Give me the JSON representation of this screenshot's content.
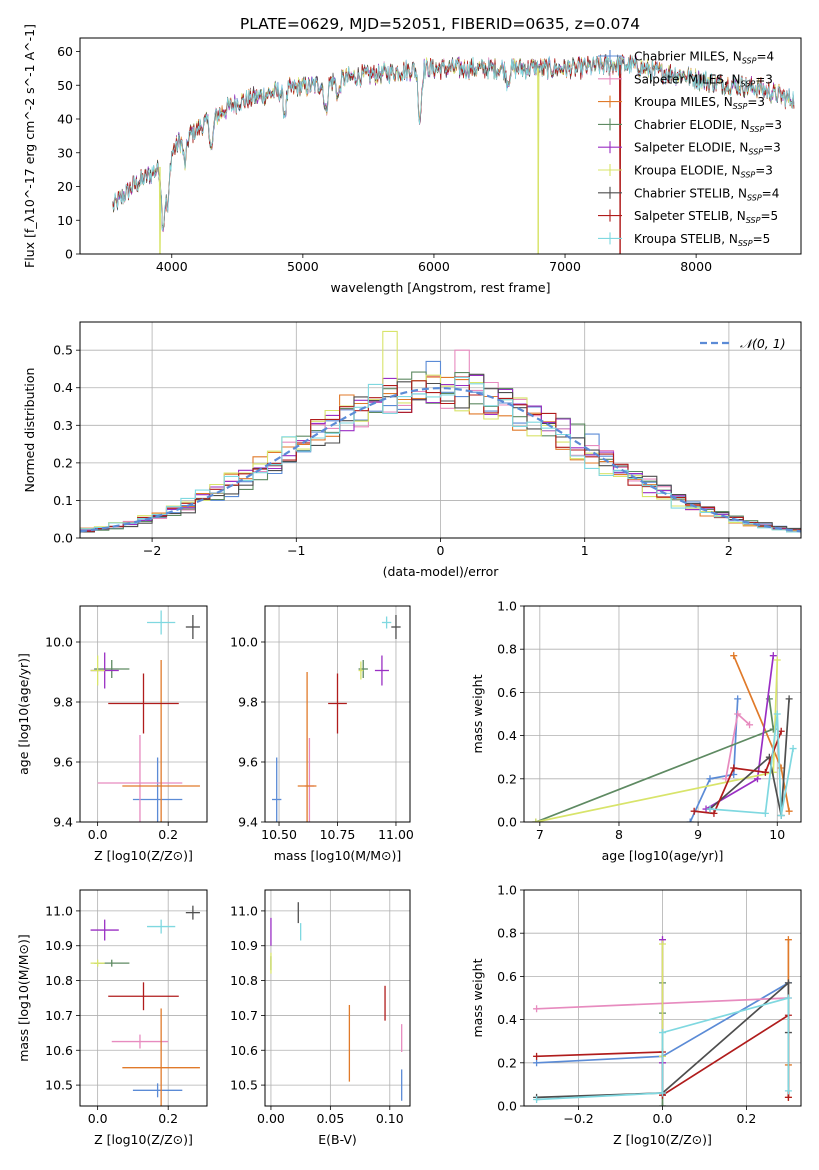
{
  "figure_title": "PLATE=0629, MJD=52051, FIBERID=0635, z=0.074",
  "colors": {
    "Chabrier MILES": "#5b8bd6",
    "Salpeter MILES": "#e78bbf",
    "Kroupa MILES": "#e07a2a",
    "Chabrier ELODIE": "#5e8a62",
    "Salpeter ELODIE": "#9a2fc4",
    "Kroupa ELODIE": "#d8e46a",
    "Chabrier STELIB": "#4e4e4e",
    "Salpeter STELIB": "#b01c1c",
    "Kroupa STELIB": "#7fd8e0",
    "gauss": "#5b8bd6"
  },
  "chart_data": [
    {
      "id": "spectrum",
      "type": "line",
      "title": "PLATE=0629, MJD=52051, FIBERID=0635, z=0.074",
      "xlabel": "wavelength [Angstrom, rest frame]",
      "ylabel": "Flux [f_λ10^-17 erg cm^-2 s^-1 A^-1]",
      "xlim": [
        3300,
        8800
      ],
      "ylim": [
        0,
        64
      ],
      "xticks": [
        4000,
        5000,
        6000,
        7000,
        8000
      ],
      "yticks": [
        0,
        10,
        20,
        30,
        40,
        50,
        60
      ],
      "legend_position": "upper right",
      "legend": [
        {
          "name": "Chabrier MILES",
          "sub": "N_SSP=4"
        },
        {
          "name": "Salpeter MILES",
          "sub": "N_SSP=3"
        },
        {
          "name": "Kroupa MILES",
          "sub": "N_SSP=3"
        },
        {
          "name": "Chabrier ELODIE",
          "sub": "N_SSP=3"
        },
        {
          "name": "Salpeter ELODIE",
          "sub": "N_SSP=3"
        },
        {
          "name": "Kroupa ELODIE",
          "sub": "N_SSP=3"
        },
        {
          "name": "Chabrier STELIB",
          "sub": "N_SSP=4"
        },
        {
          "name": "Salpeter STELIB",
          "sub": "N_SSP=5"
        },
        {
          "name": "Kroupa STELIB",
          "sub": "N_SSP=5"
        }
      ],
      "continuum": [
        [
          3550,
          14
        ],
        [
          3700,
          20
        ],
        [
          3850,
          24
        ],
        [
          3950,
          27
        ],
        [
          4050,
          33
        ],
        [
          4200,
          37
        ],
        [
          4300,
          40
        ],
        [
          4500,
          45
        ],
        [
          4700,
          47
        ],
        [
          4900,
          49
        ],
        [
          5100,
          50
        ],
        [
          5300,
          52
        ],
        [
          5500,
          53
        ],
        [
          5700,
          54
        ],
        [
          5900,
          55
        ],
        [
          6100,
          55
        ],
        [
          6300,
          55
        ],
        [
          6500,
          55
        ],
        [
          6700,
          55
        ],
        [
          6900,
          55
        ],
        [
          7100,
          55
        ],
        [
          7300,
          56
        ],
        [
          7500,
          56
        ],
        [
          7700,
          54
        ],
        [
          7900,
          53
        ],
        [
          8100,
          51
        ],
        [
          8300,
          50
        ],
        [
          8500,
          49
        ],
        [
          8700,
          46
        ]
      ],
      "absorption": [
        [
          3934,
          18
        ],
        [
          3969,
          15
        ],
        [
          4101,
          8
        ],
        [
          4304,
          9
        ],
        [
          4861,
          7
        ],
        [
          5175,
          9
        ],
        [
          5270,
          5
        ],
        [
          5892,
          15
        ],
        [
          6563,
          4
        ]
      ],
      "dropouts": [
        {
          "series": "Kroupa ELODIE",
          "x": 3910
        },
        {
          "series": "Kroupa ELODIE",
          "x": 6795
        },
        {
          "series": "Salpeter STELIB",
          "x": 7420
        }
      ]
    },
    {
      "id": "residual_histogram",
      "type": "bar",
      "xlabel": "(data-model)/error",
      "ylabel": "Normed distribution",
      "xlim": [
        -2.5,
        2.5
      ],
      "ylim": [
        0,
        0.575
      ],
      "xticks": [
        -2,
        -1,
        0,
        1,
        2
      ],
      "yticks": [
        0,
        0.1,
        0.2,
        0.3,
        0.4,
        0.5
      ],
      "legend": [
        {
          "name": "N(0,1)",
          "style": "dashed"
        }
      ],
      "legend_position": "upper right",
      "bin_width": 0.1,
      "peak_values": {
        "Kroupa ELODIE": 0.55,
        "Chabrier MILES": 0.47,
        "Salpeter MILES": 0.5
      }
    },
    {
      "id": "age_vs_Z",
      "type": "scatter",
      "xlabel": "Z [log10(Z/Z⊙)]",
      "ylabel": "age [log10(age/yr)]",
      "xlim": [
        -0.05,
        0.31
      ],
      "ylim": [
        9.4,
        10.12
      ],
      "xticks": [
        0.0,
        0.2
      ],
      "yticks": [
        9.4,
        9.6,
        9.8,
        10.0
      ],
      "points": [
        {
          "series": "Chabrier MILES",
          "x": 0.17,
          "y": 9.475,
          "xerr": 0.07,
          "yerr": 0.14
        },
        {
          "series": "Salpeter MILES",
          "x": 0.12,
          "y": 9.53,
          "xerr": 0.12,
          "yerr": 0.16
        },
        {
          "series": "Kroupa MILES",
          "x": 0.18,
          "y": 9.52,
          "xerr": 0.11,
          "yerr": 0.42
        },
        {
          "series": "Chabrier ELODIE",
          "x": 0.04,
          "y": 9.91,
          "xerr": 0.05,
          "yerr": 0.03
        },
        {
          "series": "Salpeter ELODIE",
          "x": 0.02,
          "y": 9.905,
          "xerr": 0.04,
          "yerr": 0.06
        },
        {
          "series": "Kroupa ELODIE",
          "x": 0.0,
          "y": 9.905,
          "xerr": 0.02,
          "yerr": 0.05
        },
        {
          "series": "Chabrier STELIB",
          "x": 0.27,
          "y": 10.05,
          "xerr": 0.02,
          "yerr": 0.04
        },
        {
          "series": "Salpeter STELIB",
          "x": 0.13,
          "y": 9.795,
          "xerr": 0.1,
          "yerr": 0.1
        },
        {
          "series": "Kroupa STELIB",
          "x": 0.18,
          "y": 10.065,
          "xerr": 0.04,
          "yerr": 0.04
        }
      ]
    },
    {
      "id": "age_vs_mass",
      "type": "scatter",
      "xlabel": "mass [log10(M/M⊙)]",
      "ylabel": "",
      "xlim": [
        10.44,
        11.06
      ],
      "ylim": [
        9.4,
        10.12
      ],
      "xticks": [
        10.5,
        10.75,
        11.0
      ],
      "yticks": [
        9.4,
        9.6,
        9.8,
        10.0
      ],
      "points": [
        {
          "series": "Chabrier MILES",
          "x": 10.49,
          "y": 9.475,
          "xerr": 0.02,
          "yerr": 0.14
        },
        {
          "series": "Salpeter MILES",
          "x": 10.63,
          "y": 9.52,
          "xerr": 0.02,
          "yerr": 0.16
        },
        {
          "series": "Kroupa MILES",
          "x": 10.62,
          "y": 9.52,
          "xerr": 0.04,
          "yerr": 0.38
        },
        {
          "series": "Chabrier ELODIE",
          "x": 10.86,
          "y": 9.91,
          "xerr": 0.02,
          "yerr": 0.03
        },
        {
          "series": "Salpeter ELODIE",
          "x": 10.94,
          "y": 9.905,
          "xerr": 0.03,
          "yerr": 0.05
        },
        {
          "series": "Kroupa ELODIE",
          "x": 10.85,
          "y": 9.905,
          "xerr": 0.01,
          "yerr": 0.03
        },
        {
          "series": "Chabrier STELIB",
          "x": 11.0,
          "y": 10.05,
          "xerr": 0.02,
          "yerr": 0.04
        },
        {
          "series": "Salpeter STELIB",
          "x": 10.75,
          "y": 9.795,
          "xerr": 0.04,
          "yerr": 0.1
        },
        {
          "series": "Kroupa STELIB",
          "x": 10.96,
          "y": 10.065,
          "xerr": 0.02,
          "yerr": 0.02
        }
      ]
    },
    {
      "id": "weight_vs_age",
      "type": "line",
      "xlabel": "age [log10(age/yr)]",
      "ylabel": "mass weight",
      "xlim": [
        6.8,
        10.3
      ],
      "ylim": [
        0,
        1.0
      ],
      "xticks": [
        7,
        8,
        9,
        10
      ],
      "yticks": [
        0.0,
        0.2,
        0.4,
        0.6,
        0.8,
        1.0
      ],
      "series": [
        {
          "name": "Chabrier MILES",
          "x": [
            8.9,
            9.15,
            9.45,
            9.5
          ],
          "y": [
            0.0,
            0.2,
            0.22,
            0.57
          ]
        },
        {
          "name": "Salpeter MILES",
          "x": [
            9.35,
            9.5,
            9.65
          ],
          "y": [
            0.2,
            0.5,
            0.45
          ]
        },
        {
          "name": "Kroupa MILES",
          "x": [
            9.45,
            10.05,
            10.15
          ],
          "y": [
            0.77,
            0.25,
            0.05
          ]
        },
        {
          "name": "Chabrier ELODIE",
          "x": [
            6.95,
            9.95,
            9.9
          ],
          "y": [
            0.0,
            0.43,
            0.57
          ]
        },
        {
          "name": "Salpeter ELODIE",
          "x": [
            9.1,
            9.75,
            9.95
          ],
          "y": [
            0.06,
            0.2,
            0.77
          ]
        },
        {
          "name": "Kroupa ELODIE",
          "x": [
            6.95,
            9.95,
            10.0
          ],
          "y": [
            0.0,
            0.23,
            0.75
          ]
        },
        {
          "name": "Chabrier STELIB",
          "x": [
            9.15,
            9.9,
            10.05,
            10.15
          ],
          "y": [
            0.06,
            0.3,
            0.03,
            0.57
          ]
        },
        {
          "name": "Salpeter STELIB",
          "x": [
            8.95,
            9.2,
            9.45,
            9.85,
            10.05
          ],
          "y": [
            0.05,
            0.04,
            0.25,
            0.23,
            0.42
          ]
        },
        {
          "name": "Kroupa STELIB",
          "x": [
            9.15,
            9.85,
            10.0,
            10.05,
            10.2
          ],
          "y": [
            0.06,
            0.04,
            0.5,
            0.03,
            0.34
          ]
        }
      ]
    },
    {
      "id": "mass_vs_Z",
      "type": "scatter",
      "xlabel": "Z [log10(Z/Z⊙)]",
      "ylabel": "mass [log10(M/M⊙)]",
      "xlim": [
        -0.05,
        0.31
      ],
      "ylim": [
        10.44,
        11.06
      ],
      "xticks": [
        0.0,
        0.2
      ],
      "yticks": [
        10.5,
        10.6,
        10.7,
        10.8,
        10.9,
        11.0
      ],
      "points": [
        {
          "series": "Chabrier MILES",
          "x": 0.17,
          "y": 10.485,
          "xerr": 0.07,
          "yerr": 0.02
        },
        {
          "series": "Salpeter MILES",
          "x": 0.12,
          "y": 10.625,
          "xerr": 0.08,
          "yerr": 0.02
        },
        {
          "series": "Kroupa MILES",
          "x": 0.18,
          "y": 10.55,
          "xerr": 0.11,
          "yerr": 0.17
        },
        {
          "series": "Chabrier ELODIE",
          "x": 0.04,
          "y": 10.85,
          "xerr": 0.05,
          "yerr": 0.01
        },
        {
          "series": "Salpeter ELODIE",
          "x": 0.02,
          "y": 10.945,
          "xerr": 0.04,
          "yerr": 0.03
        },
        {
          "series": "Kroupa ELODIE",
          "x": 0.0,
          "y": 10.85,
          "xerr": 0.02,
          "yerr": 0.01
        },
        {
          "series": "Chabrier STELIB",
          "x": 0.27,
          "y": 10.995,
          "xerr": 0.02,
          "yerr": 0.02
        },
        {
          "series": "Salpeter STELIB",
          "x": 0.13,
          "y": 10.755,
          "xerr": 0.1,
          "yerr": 0.04
        },
        {
          "series": "Kroupa STELIB",
          "x": 0.18,
          "y": 10.955,
          "xerr": 0.04,
          "yerr": 0.02
        }
      ]
    },
    {
      "id": "mass_vs_EBV",
      "type": "scatter",
      "xlabel": "E(B-V)",
      "ylabel": "",
      "xlim": [
        -0.005,
        0.117
      ],
      "ylim": [
        10.44,
        11.06
      ],
      "xticks": [
        0.0,
        0.05,
        0.1
      ],
      "yticks": [
        10.5,
        10.6,
        10.7,
        10.8,
        10.9,
        11.0
      ],
      "points": [
        {
          "series": "Chabrier MILES",
          "x": 0.11,
          "y": 10.5,
          "xerr": 0.0,
          "yerr": 0.045
        },
        {
          "series": "Salpeter MILES",
          "x": 0.11,
          "y": 10.635,
          "xerr": 0.0,
          "yerr": 0.04
        },
        {
          "series": "Kroupa MILES",
          "x": 0.066,
          "y": 10.62,
          "xerr": 0.0,
          "yerr": 0.11
        },
        {
          "series": "Chabrier ELODIE",
          "x": 0.0,
          "y": 10.85,
          "xerr": 0.0,
          "yerr": 0.02
        },
        {
          "series": "Salpeter ELODIE",
          "x": 0.0,
          "y": 10.94,
          "xerr": 0.0,
          "yerr": 0.04
        },
        {
          "series": "Kroupa ELODIE",
          "x": 0.0,
          "y": 10.85,
          "xerr": 0.0,
          "yerr": 0.03
        },
        {
          "series": "Chabrier STELIB",
          "x": 0.023,
          "y": 10.995,
          "xerr": 0.0,
          "yerr": 0.03
        },
        {
          "series": "Salpeter STELIB",
          "x": 0.096,
          "y": 10.735,
          "xerr": 0.0,
          "yerr": 0.05
        },
        {
          "series": "Kroupa STELIB",
          "x": 0.025,
          "y": 10.94,
          "xerr": 0.0,
          "yerr": 0.025
        }
      ]
    },
    {
      "id": "weight_vs_Z",
      "type": "line",
      "xlabel": "Z [log10(Z/Z⊙)]",
      "ylabel": "mass weight",
      "xlim": [
        -0.33,
        0.33
      ],
      "ylim": [
        0,
        1.0
      ],
      "xticks": [
        -0.2,
        0.0,
        0.2
      ],
      "yticks": [
        0.0,
        0.2,
        0.4,
        0.6,
        0.8,
        1.0
      ],
      "series": [
        {
          "name": "Chabrier MILES",
          "x": [
            -0.3,
            0.0,
            0.3
          ],
          "y": [
            0.2,
            0.23,
            0.57
          ]
        },
        {
          "name": "Salpeter MILES",
          "x": [
            -0.3,
            0.3
          ],
          "y": [
            0.45,
            0.5
          ]
        },
        {
          "name": "Kroupa MILES",
          "x": [
            0.3,
            0.3,
            0.3
          ],
          "y": [
            0.77,
            0.19,
            0.04
          ]
        },
        {
          "name": "Chabrier ELODIE",
          "x": [
            0.0,
            0.0,
            0.0
          ],
          "y": [
            0.57,
            0.43,
            0.0
          ]
        },
        {
          "name": "Salpeter ELODIE",
          "x": [
            0.0,
            0.0,
            0.0
          ],
          "y": [
            0.77,
            0.2,
            0.06
          ]
        },
        {
          "name": "Kroupa ELODIE",
          "x": [
            0.0,
            0.0
          ],
          "y": [
            0.75,
            0.23
          ]
        },
        {
          "name": "Chabrier STELIB",
          "x": [
            -0.3,
            0.0,
            0.3,
            0.3
          ],
          "y": [
            0.04,
            0.06,
            0.57,
            0.34
          ]
        },
        {
          "name": "Salpeter STELIB",
          "x": [
            -0.3,
            0.0,
            0.0,
            0.3,
            0.3
          ],
          "y": [
            0.23,
            0.25,
            0.05,
            0.42,
            0.04
          ]
        },
        {
          "name": "Kroupa STELIB",
          "x": [
            -0.3,
            0.0,
            0.0,
            0.3,
            0.3
          ],
          "y": [
            0.03,
            0.06,
            0.34,
            0.5,
            0.07
          ]
        }
      ]
    }
  ]
}
